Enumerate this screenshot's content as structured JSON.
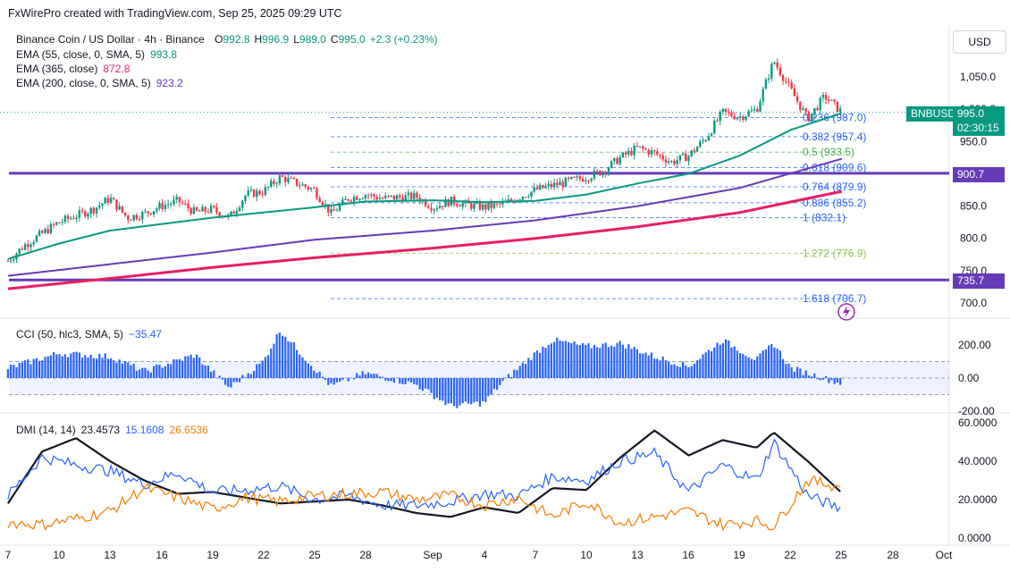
{
  "header": {
    "credit": "FxWirePro created with TradingView.com, Sep 25, 2025 09:29 UTC"
  },
  "legend": {
    "main": "Binance Coin / US Dollar · 4h · Binance",
    "ohlc": [
      {
        "k": "O",
        "v": "992.8"
      },
      {
        "k": "H",
        "v": "996.9"
      },
      {
        "k": "L",
        "v": "989.0"
      },
      {
        "k": "C",
        "v": "995.0"
      },
      {
        "k": "",
        "v": "+2.3 (+0.23%)"
      }
    ],
    "ema55": {
      "label": "EMA (55, close, 0, SMA, 5)",
      "value": "993.8",
      "color": "#089981"
    },
    "ema365": {
      "label": "EMA (365, close)",
      "value": "872.8",
      "color": "#e91e63"
    },
    "ema200": {
      "label": "EMA (200, close, 0, SMA, 5)",
      "value": "923.2",
      "color": "#673ab7"
    },
    "cci": {
      "label": "CCI (50, hlc3, SMA, 5)",
      "value": "−35.47",
      "color": "#2962ff"
    },
    "dmi": {
      "label": "DMI (14, 14)",
      "adx": "23.4573",
      "plus": "15.1608",
      "minus": "26.6536",
      "adx_color": "#131722",
      "plus_color": "#2962ff",
      "minus_color": "#f57c00"
    }
  },
  "price_scale": {
    "currency": "USD",
    "symbol_tag": "BNBUSD",
    "last_price": "995.0",
    "countdown": "02:30:15",
    "level_tags": [
      "900.7",
      "735.7"
    ]
  },
  "chart_data": {
    "type": "candlestick",
    "symbol": "BNBUSD",
    "timeframe": "4h",
    "x_labels": [
      "7",
      "10",
      "13",
      "16",
      "19",
      "22",
      "25",
      "28",
      "Sep",
      "4",
      "7",
      "10",
      "13",
      "16",
      "19",
      "22",
      "25",
      "28",
      "Oct"
    ],
    "y_ticks": [
      1050,
      1000,
      950,
      900,
      850,
      800,
      750,
      700
    ],
    "ylim": [
      682,
      1088
    ],
    "price_path": [
      {
        "x": "Aug 7",
        "y": 765
      },
      {
        "x": "Aug 8",
        "y": 790
      },
      {
        "x": "Aug 10",
        "y": 825
      },
      {
        "x": "Aug 12",
        "y": 845
      },
      {
        "x": "Aug 13",
        "y": 862
      },
      {
        "x": "Aug 14",
        "y": 832
      },
      {
        "x": "Aug 15",
        "y": 838
      },
      {
        "x": "Aug 16",
        "y": 850
      },
      {
        "x": "Aug 17",
        "y": 858
      },
      {
        "x": "Aug 18",
        "y": 840
      },
      {
        "x": "Aug 19",
        "y": 845
      },
      {
        "x": "Aug 20",
        "y": 832
      },
      {
        "x": "Aug 21",
        "y": 868
      },
      {
        "x": "Aug 22",
        "y": 872
      },
      {
        "x": "Aug 23",
        "y": 895
      },
      {
        "x": "Aug 24",
        "y": 885
      },
      {
        "x": "Aug 25",
        "y": 875
      },
      {
        "x": "Aug 26",
        "y": 838
      },
      {
        "x": "Aug 27",
        "y": 862
      },
      {
        "x": "Aug 28",
        "y": 868
      },
      {
        "x": "Aug 29",
        "y": 862
      },
      {
        "x": "Aug 31",
        "y": 865
      },
      {
        "x": "Sep 1",
        "y": 848
      },
      {
        "x": "Sep 2",
        "y": 858
      },
      {
        "x": "Sep 3",
        "y": 852
      },
      {
        "x": "Sep 4",
        "y": 848
      },
      {
        "x": "Sep 5",
        "y": 852
      },
      {
        "x": "Sep 7",
        "y": 875
      },
      {
        "x": "Sep 8",
        "y": 882
      },
      {
        "x": "Sep 10",
        "y": 895
      },
      {
        "x": "Sep 11",
        "y": 905
      },
      {
        "x": "Sep 12",
        "y": 925
      },
      {
        "x": "Sep 13",
        "y": 940
      },
      {
        "x": "Sep 14",
        "y": 932
      },
      {
        "x": "Sep 15",
        "y": 918
      },
      {
        "x": "Sep 16",
        "y": 928
      },
      {
        "x": "Sep 17",
        "y": 955
      },
      {
        "x": "Sep 18",
        "y": 995
      },
      {
        "x": "Sep 19",
        "y": 988
      },
      {
        "x": "Sep 20",
        "y": 1000
      },
      {
        "x": "Sep 21",
        "y": 1075
      },
      {
        "x": "Sep 22",
        "y": 1030
      },
      {
        "x": "Sep 23",
        "y": 985
      },
      {
        "x": "Sep 24",
        "y": 1020
      },
      {
        "x": "Sep 25",
        "y": 995
      }
    ],
    "ema_series": [
      {
        "name": "EMA 55",
        "color": "#089981",
        "points": [
          {
            "x": "Aug 7",
            "y": 768
          },
          {
            "x": "Aug 10",
            "y": 792
          },
          {
            "x": "Aug 13",
            "y": 812
          },
          {
            "x": "Aug 16",
            "y": 822
          },
          {
            "x": "Aug 19",
            "y": 832
          },
          {
            "x": "Aug 22",
            "y": 840
          },
          {
            "x": "Aug 25",
            "y": 848
          },
          {
            "x": "Aug 28",
            "y": 857
          },
          {
            "x": "Sep 1",
            "y": 859
          },
          {
            "x": "Sep 4",
            "y": 856
          },
          {
            "x": "Sep 7",
            "y": 858
          },
          {
            "x": "Sep 10",
            "y": 868
          },
          {
            "x": "Sep 13",
            "y": 885
          },
          {
            "x": "Sep 16",
            "y": 900
          },
          {
            "x": "Sep 19",
            "y": 928
          },
          {
            "x": "Sep 22",
            "y": 968
          },
          {
            "x": "Sep 25",
            "y": 993.8
          }
        ]
      },
      {
        "name": "EMA 200",
        "color": "#673ab7",
        "points": [
          {
            "x": "Aug 7",
            "y": 742
          },
          {
            "x": "Aug 13",
            "y": 760
          },
          {
            "x": "Aug 19",
            "y": 778
          },
          {
            "x": "Aug 25",
            "y": 798
          },
          {
            "x": "Sep 1",
            "y": 812
          },
          {
            "x": "Sep 7",
            "y": 828
          },
          {
            "x": "Sep 13",
            "y": 850
          },
          {
            "x": "Sep 19",
            "y": 878
          },
          {
            "x": "Sep 25",
            "y": 923.2
          }
        ]
      },
      {
        "name": "EMA 365",
        "color": "#e91e63",
        "points": [
          {
            "x": "Aug 7",
            "y": 722
          },
          {
            "x": "Aug 13",
            "y": 738
          },
          {
            "x": "Aug 19",
            "y": 755
          },
          {
            "x": "Aug 25",
            "y": 770
          },
          {
            "x": "Sep 1",
            "y": 785
          },
          {
            "x": "Sep 7",
            "y": 800
          },
          {
            "x": "Sep 13",
            "y": 818
          },
          {
            "x": "Sep 19",
            "y": 840
          },
          {
            "x": "Sep 25",
            "y": 872.8
          }
        ]
      }
    ],
    "horizontal_levels": [
      {
        "value": 900.7,
        "color": "#673ab7"
      },
      {
        "value": 735.7,
        "color": "#673ab7"
      }
    ],
    "fibonacci": [
      {
        "ratio": "0.236",
        "value": "987.0",
        "label": "0.236 (987.0)",
        "color": "#2962ff"
      },
      {
        "ratio": "0.382",
        "value": "957.4",
        "label": "0.382 (957.4)",
        "color": "#2962ff"
      },
      {
        "ratio": "0.5",
        "value": "933.5",
        "label": "0.5 (933.5)",
        "color": "#4caf50"
      },
      {
        "ratio": "0.618",
        "value": "909.6",
        "label": "0.618 (909.6)",
        "color": "#2962ff"
      },
      {
        "ratio": "0.764",
        "value": "879.9",
        "label": "0.764 (879.9)",
        "color": "#2962ff"
      },
      {
        "ratio": "0.886",
        "value": "855.2",
        "label": "0.886 (855.2)",
        "color": "#2962ff"
      },
      {
        "ratio": "1",
        "value": "832.1",
        "label": "1 (832.1)",
        "color": "#2962ff"
      },
      {
        "ratio": "1.272",
        "value": "776.9",
        "label": "1.272 (776.9)",
        "color": "#8bc34a"
      },
      {
        "ratio": "1.618",
        "value": "706.7",
        "label": "1.618 (706.7)",
        "color": "#2962ff"
      }
    ],
    "cci": {
      "y_ticks": [
        "200.00",
        "0.00",
        "-200.00"
      ],
      "ylim": [
        -215,
        225
      ],
      "band": [
        -100,
        100
      ],
      "path": [
        {
          "x": "Aug 7",
          "y": 60
        },
        {
          "x": "Aug 10",
          "y": 150
        },
        {
          "x": "Aug 13",
          "y": 130
        },
        {
          "x": "Aug 15",
          "y": 40
        },
        {
          "x": "Aug 18",
          "y": 140
        },
        {
          "x": "Aug 20",
          "y": -60
        },
        {
          "x": "Aug 22",
          "y": 100
        },
        {
          "x": "Aug 23",
          "y": 290
        },
        {
          "x": "Aug 25",
          "y": 60
        },
        {
          "x": "Aug 26",
          "y": -50
        },
        {
          "x": "Aug 28",
          "y": 30
        },
        {
          "x": "Aug 31",
          "y": -40
        },
        {
          "x": "Sep 2",
          "y": -170
        },
        {
          "x": "Sep 4",
          "y": -150
        },
        {
          "x": "Sep 5",
          "y": -30
        },
        {
          "x": "Sep 7",
          "y": 150
        },
        {
          "x": "Sep 8",
          "y": 230
        },
        {
          "x": "Sep 10",
          "y": 190
        },
        {
          "x": "Sep 12",
          "y": 210
        },
        {
          "x": "Sep 14",
          "y": 130
        },
        {
          "x": "Sep 16",
          "y": 70
        },
        {
          "x": "Sep 18",
          "y": 230
        },
        {
          "x": "Sep 20",
          "y": 110
        },
        {
          "x": "Sep 21",
          "y": 210
        },
        {
          "x": "Sep 22",
          "y": 60
        },
        {
          "x": "Sep 23",
          "y": 30
        },
        {
          "x": "Sep 25",
          "y": -35.47
        }
      ]
    },
    "dmi": {
      "y_ticks": [
        "60.0000",
        "40.0000",
        "20.0000",
        "0.0000"
      ],
      "ylim": [
        -0.5,
        61
      ],
      "series": [
        {
          "name": "ADX",
          "color": "#131722",
          "points": [
            {
              "x": "Aug 7",
              "y": 18
            },
            {
              "x": "Aug 9",
              "y": 45
            },
            {
              "x": "Aug 11",
              "y": 52
            },
            {
              "x": "Aug 13",
              "y": 40
            },
            {
              "x": "Aug 15",
              "y": 30
            },
            {
              "x": "Aug 17",
              "y": 23
            },
            {
              "x": "Aug 19",
              "y": 24
            },
            {
              "x": "Aug 21",
              "y": 21
            },
            {
              "x": "Aug 23",
              "y": 18
            },
            {
              "x": "Aug 25",
              "y": 19
            },
            {
              "x": "Aug 27",
              "y": 20
            },
            {
              "x": "Aug 29",
              "y": 17
            },
            {
              "x": "Aug 31",
              "y": 13
            },
            {
              "x": "Sep 2",
              "y": 11
            },
            {
              "x": "Sep 4",
              "y": 16
            },
            {
              "x": "Sep 6",
              "y": 13
            },
            {
              "x": "Sep 8",
              "y": 26
            },
            {
              "x": "Sep 10",
              "y": 25
            },
            {
              "x": "Sep 12",
              "y": 42
            },
            {
              "x": "Sep 14",
              "y": 56
            },
            {
              "x": "Sep 16",
              "y": 43
            },
            {
              "x": "Sep 18",
              "y": 51
            },
            {
              "x": "Sep 20",
              "y": 47
            },
            {
              "x": "Sep 21",
              "y": 55
            },
            {
              "x": "Sep 23",
              "y": 40
            },
            {
              "x": "Sep 25",
              "y": 23.46
            }
          ]
        },
        {
          "name": "+DI",
          "color": "#2962ff",
          "points": [
            {
              "x": "Aug 7",
              "y": 22
            },
            {
              "x": "Aug 9",
              "y": 42
            },
            {
              "x": "Aug 11",
              "y": 38
            },
            {
              "x": "Aug 13",
              "y": 35
            },
            {
              "x": "Aug 15",
              "y": 28
            },
            {
              "x": "Aug 17",
              "y": 34
            },
            {
              "x": "Aug 19",
              "y": 24
            },
            {
              "x": "Aug 21",
              "y": 25
            },
            {
              "x": "Aug 23",
              "y": 27
            },
            {
              "x": "Aug 25",
              "y": 20
            },
            {
              "x": "Aug 27",
              "y": 22
            },
            {
              "x": "Aug 29",
              "y": 17
            },
            {
              "x": "Aug 31",
              "y": 17
            },
            {
              "x": "Sep 2",
              "y": 19
            },
            {
              "x": "Sep 4",
              "y": 23
            },
            {
              "x": "Sep 6",
              "y": 22
            },
            {
              "x": "Sep 8",
              "y": 32
            },
            {
              "x": "Sep 10",
              "y": 30
            },
            {
              "x": "Sep 12",
              "y": 40
            },
            {
              "x": "Sep 14",
              "y": 44
            },
            {
              "x": "Sep 16",
              "y": 24
            },
            {
              "x": "Sep 18",
              "y": 38
            },
            {
              "x": "Sep 20",
              "y": 30
            },
            {
              "x": "Sep 21",
              "y": 50
            },
            {
              "x": "Sep 23",
              "y": 22
            },
            {
              "x": "Sep 25",
              "y": 15.16
            }
          ]
        },
        {
          "name": "-DI",
          "color": "#f57c00",
          "points": [
            {
              "x": "Aug 7",
              "y": 8
            },
            {
              "x": "Aug 9",
              "y": 7
            },
            {
              "x": "Aug 11",
              "y": 10
            },
            {
              "x": "Aug 13",
              "y": 14
            },
            {
              "x": "Aug 15",
              "y": 26
            },
            {
              "x": "Aug 17",
              "y": 21
            },
            {
              "x": "Aug 19",
              "y": 15
            },
            {
              "x": "Aug 21",
              "y": 21
            },
            {
              "x": "Aug 23",
              "y": 19
            },
            {
              "x": "Aug 25",
              "y": 22
            },
            {
              "x": "Aug 27",
              "y": 23
            },
            {
              "x": "Aug 29",
              "y": 24
            },
            {
              "x": "Aug 31",
              "y": 20
            },
            {
              "x": "Sep 2",
              "y": 22
            },
            {
              "x": "Sep 4",
              "y": 17
            },
            {
              "x": "Sep 6",
              "y": 21
            },
            {
              "x": "Sep 8",
              "y": 11
            },
            {
              "x": "Sep 10",
              "y": 19
            },
            {
              "x": "Sep 12",
              "y": 8
            },
            {
              "x": "Sep 14",
              "y": 11
            },
            {
              "x": "Sep 16",
              "y": 14
            },
            {
              "x": "Sep 18",
              "y": 7
            },
            {
              "x": "Sep 20",
              "y": 9
            },
            {
              "x": "Sep 21",
              "y": 6
            },
            {
              "x": "Sep 23",
              "y": 30
            },
            {
              "x": "Sep 25",
              "y": 26.65
            }
          ]
        }
      ]
    }
  }
}
